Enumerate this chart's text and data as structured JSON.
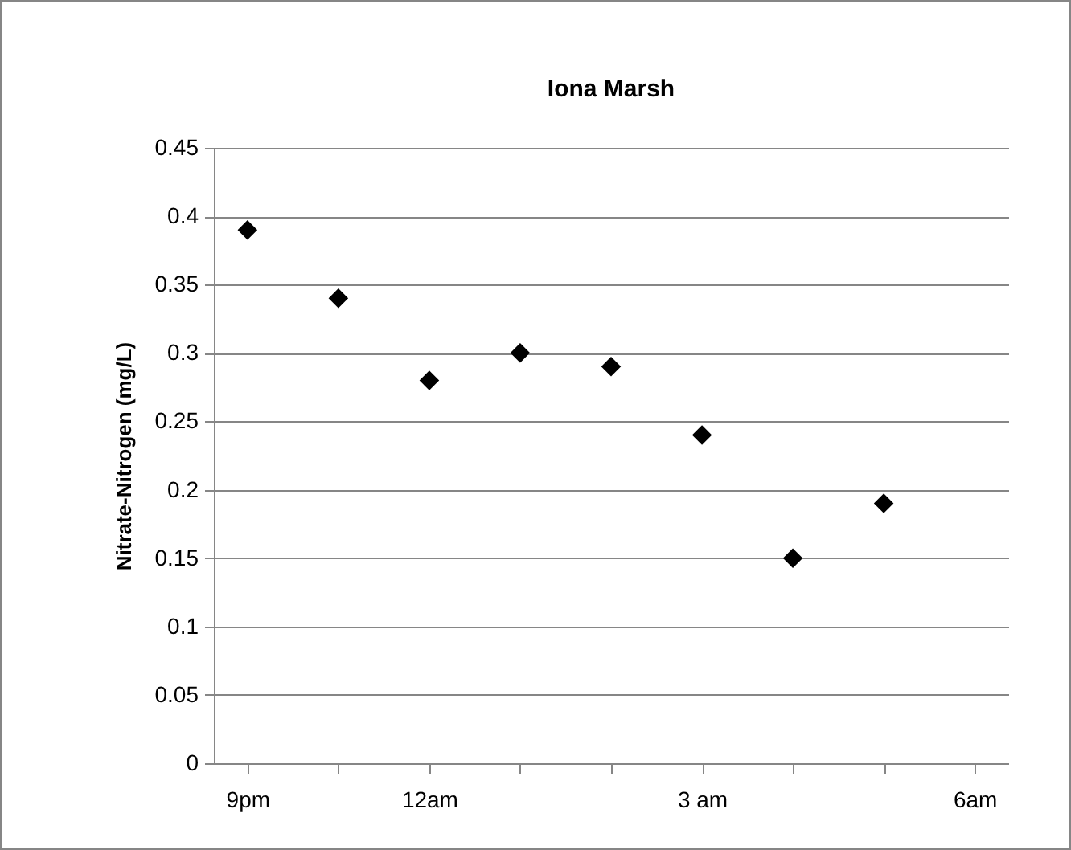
{
  "chart_data": {
    "type": "scatter",
    "title": "Iona Marsh",
    "ylabel": "Nitrate-Nitrogen  (mg/L)",
    "categories": [
      "9pm",
      null,
      "12am",
      null,
      null,
      "3 am",
      null,
      null,
      "6am"
    ],
    "series": [
      {
        "color": "#000000",
        "values": [
          0.39,
          0.34,
          0.28,
          0.3,
          0.29,
          0.24,
          0.15,
          0.19,
          null
        ]
      }
    ],
    "marker": "diamond",
    "grid": "y",
    "ylim": [
      0,
      0.45
    ],
    "yticks": [
      0,
      0.05,
      0.1,
      0.15,
      0.2,
      0.25,
      0.3,
      0.35,
      0.4,
      0.45
    ]
  }
}
